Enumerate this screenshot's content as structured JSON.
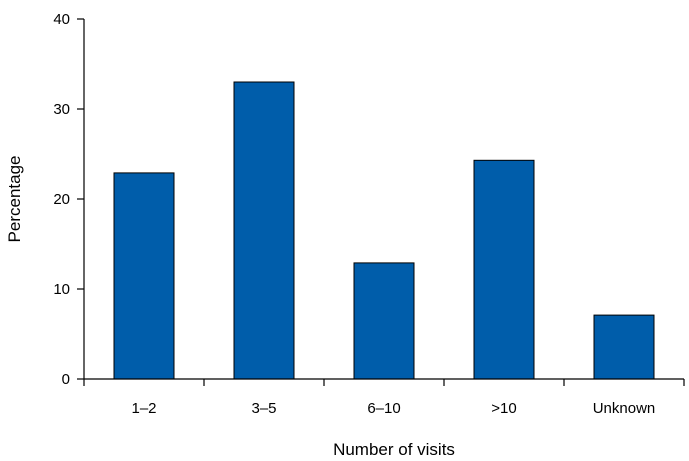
{
  "chart_data": {
    "type": "bar",
    "title": "",
    "xlabel": "Number of visits",
    "ylabel": "Percentage",
    "categories": [
      "1–2",
      "3–5",
      "6–10",
      ">10",
      "Unknown"
    ],
    "values": [
      22.9,
      33.0,
      12.9,
      24.3,
      7.1
    ],
    "ylim": [
      0,
      40
    ],
    "yticks": [
      "0",
      "10",
      "20",
      "30",
      "40"
    ],
    "grid": false,
    "legend": "none",
    "bar_color": "#005daa"
  }
}
